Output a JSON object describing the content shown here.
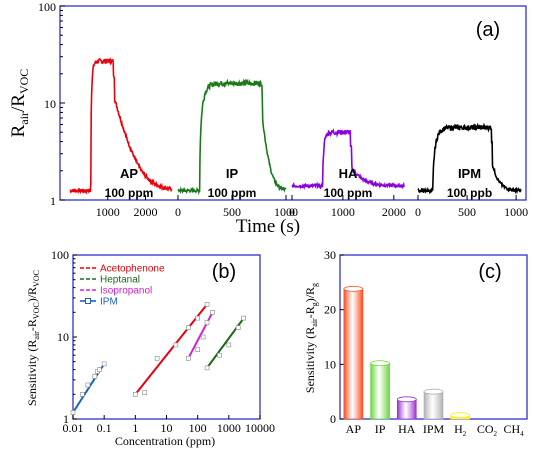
{
  "chart_data": [
    {
      "panel": "(a)",
      "type": "line",
      "xlabel": "Time (s)",
      "ylabel_main": "R",
      "ylabel_sub1": "air",
      "ylabel_mid": "/R",
      "ylabel_sub2": "VOC",
      "yscale": "log",
      "ylim": [
        1,
        100
      ],
      "y_ticks": [
        "1",
        "10",
        "100"
      ],
      "segments": [
        {
          "name": "AP",
          "conc": "100 ppm",
          "color": "#e8000b",
          "x_ticks": [
            "1000",
            "2000"
          ],
          "xlim": [
            0,
            2700
          ],
          "baseline": 1.25,
          "peak": 27,
          "on": 550,
          "off": 1150
        },
        {
          "name": "IP",
          "conc": "100 ppm",
          "color": "#1a7a1a",
          "x_ticks": [
            "0",
            "500",
            "1000"
          ],
          "xlim": [
            0,
            1000
          ],
          "baseline": 1.25,
          "peak": 16,
          "on": 200,
          "off": 780
        },
        {
          "name": "HA",
          "conc": "100 ppm",
          "color": "#8a00e0",
          "x_ticks": [
            "0",
            "1000",
            "2000"
          ],
          "xlim": [
            0,
            2200
          ],
          "baseline": 1.4,
          "peak": 5,
          "on": 600,
          "off": 1150
        },
        {
          "name": "IPM",
          "conc": "100 ppb",
          "color": "#000000",
          "x_ticks": [
            "0",
            "500",
            "1000"
          ],
          "xlim": [
            0,
            1050
          ],
          "baseline": 1.25,
          "peak": 5.6,
          "on": 150,
          "off": 750
        }
      ]
    },
    {
      "panel": "(b)",
      "type": "scatter",
      "xlabel": "Concentration (ppm)",
      "ylabel": "Sensitivity (R",
      "ylabel_sub1": "air",
      "ylabel_mid": "-R",
      "ylabel_sub2": "VOC",
      "ylabel_end": ")/R",
      "ylabel_sub3": "VOC",
      "xscale": "log",
      "yscale": "log",
      "xlim": [
        0.01,
        10000
      ],
      "ylim": [
        1,
        100
      ],
      "x_ticks": [
        "0.01",
        "0.1",
        "1",
        "10",
        "100",
        "1000",
        "10000"
      ],
      "y_ticks": [
        "1",
        "10",
        "100"
      ],
      "series": [
        {
          "name": "Acetophenone",
          "color": "#e8000b",
          "x": [
            1,
            2,
            5,
            20,
            50,
            100,
            200
          ],
          "y": [
            2,
            2.1,
            5.5,
            8,
            13,
            17,
            25
          ]
        },
        {
          "name": "Heptanal",
          "color": "#1a6a1a",
          "x": [
            200,
            500,
            1000,
            2000,
            3000
          ],
          "y": [
            4.2,
            6,
            8,
            13,
            17
          ]
        },
        {
          "name": "Isopropanol",
          "color": "#d020d0",
          "x": [
            50,
            100,
            150,
            200,
            300
          ],
          "y": [
            5.5,
            7,
            10,
            15,
            20
          ]
        },
        {
          "name": "IPM",
          "color": "#1a60c0",
          "x": [
            0.01,
            0.02,
            0.03,
            0.05,
            0.06,
            0.07,
            0.1
          ],
          "y": [
            1.2,
            2,
            2.6,
            3.3,
            3.8,
            4,
            4.7
          ]
        }
      ]
    },
    {
      "panel": "(c)",
      "type": "bar",
      "ylabel": "Sensitivity (R",
      "ylabel_sub1": "air",
      "ylabel_mid": "-R",
      "ylabel_sub2": "g",
      "ylabel_end": ")/R",
      "ylabel_sub3": "g",
      "ylim": [
        0,
        30
      ],
      "y_ticks": [
        "0",
        "10",
        "20",
        "30"
      ],
      "categories": [
        "AP",
        "IP",
        "HA",
        "IPM",
        "H",
        "CO",
        "CH"
      ],
      "category_subs": [
        "",
        "",
        "",
        "",
        "2",
        "2",
        "4"
      ],
      "values": [
        23.8,
        10.2,
        3.6,
        5,
        0.7,
        0,
        0
      ],
      "colors": [
        "#ff4a1a",
        "#6cd43c",
        "#9b2fd0",
        "#b0b0b0",
        "#ffee00",
        "#d0d0d0",
        "#d0d0d0"
      ]
    }
  ]
}
